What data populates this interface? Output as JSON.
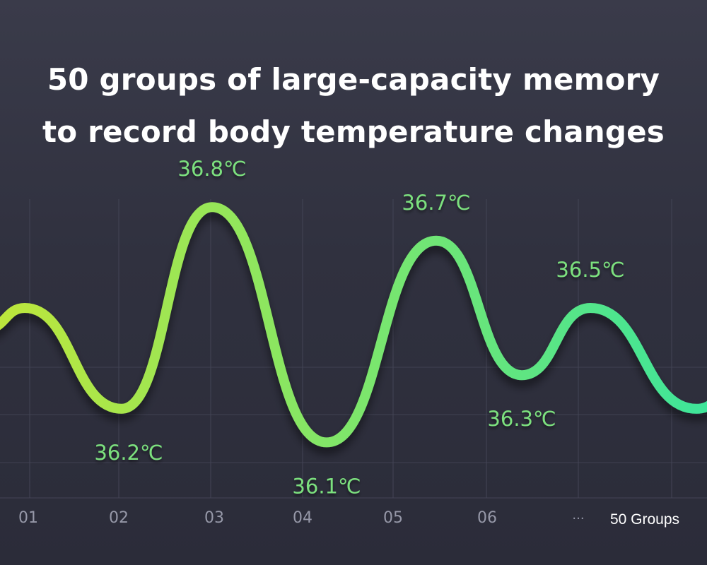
{
  "title": {
    "line1": "50 groups of large-capacity memory",
    "line2": "to record body temperature changes"
  },
  "colors": {
    "background": "#30313f",
    "curve_start": "#bde63c",
    "curve_end": "#3ee59a",
    "label": "#7be07e",
    "grid": "#434455",
    "tick": "#9698a8"
  },
  "chart_data": {
    "type": "line",
    "grid": true,
    "categories": [
      "01",
      "02",
      "03",
      "04",
      "05",
      "06",
      "···",
      "50 Groups"
    ],
    "series": [
      {
        "values": [
          36.5,
          36.2,
          36.8,
          36.1,
          36.7,
          36.3,
          36.5,
          36.2
        ],
        "labels": [
          "",
          "36.2℃",
          "36.8℃",
          "36.1℃",
          "36.7℃",
          "36.3℃",
          "36.5℃",
          ""
        ]
      }
    ]
  }
}
